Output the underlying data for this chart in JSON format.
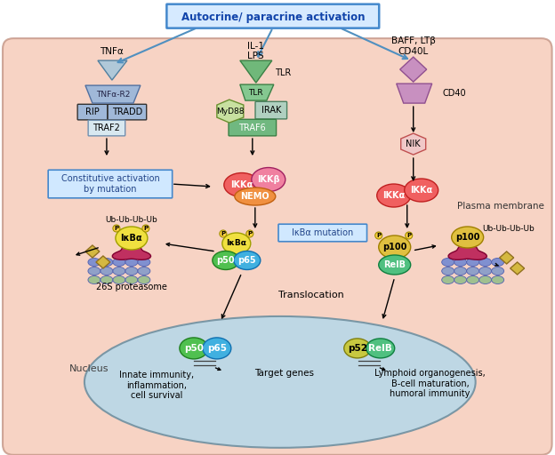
{
  "bg_color": "#FFFFFF",
  "cell_bg": "#F5C5B0",
  "nucleus_bg": "#B8D8E8",
  "cell_border": "#C09080",
  "nucleus_border": "#7090A0",
  "top_box_text": "Autocrine/ paracrine activation",
  "top_box_color": "#E8F4FF",
  "top_box_border": "#4080C0",
  "plasma_membrane_text": "Plasma membrane",
  "nucleus_text": "Nucleus",
  "labels": {
    "TNFa": "TNFα",
    "TNFa_R2": "TNFα-R2",
    "IL1": "IL-1",
    "LPS": "LPS",
    "TLR": "TLR",
    "BAFF_LTb": "BAFF, LTβ",
    "CD40L": "CD40L",
    "CD40": "CD40",
    "RIP": "RIP",
    "TRADD": "TRADD",
    "TRAF2": "TRAF2",
    "MyD88": "MyD88",
    "IRAK": "IRAK",
    "TRAF6": "TRAF6",
    "NIK": "NIK",
    "IKKa1": "IKKα",
    "IKKb": "IKKβ",
    "NEMO": "NEMO",
    "IKKa2": "IKKα",
    "IKKa3": "IKKα",
    "IkBa1": "IκBα",
    "IkBa2": "IκBα",
    "p50_1": "p50",
    "p65_1": "p65",
    "p100_1": "p100",
    "RelB_1": "RelB",
    "p100_2": "p100",
    "Ub_left": "Ub-Ub-Ub-Ub",
    "Ub_right": "Ub-Ub-Ub-Ub",
    "26S": "26S proteasome",
    "constitutive": "Constitutive activation\nby mutation",
    "IkBa_mutation": "IκBα mutation",
    "translocation": "Translocation",
    "p50_nuc": "p50",
    "p65_nuc": "p65",
    "p52_nuc": "p52",
    "RelB_nuc": "RelB",
    "innate": "Innate immunity,\ninflammation,\ncell survival",
    "target_genes": "Target genes",
    "lymphoid": "Lymphoid organogenesis,\nB-cell maturation,\nhumoral immunity",
    "P": "P"
  },
  "colors": {
    "top_box_bg": "#D6EAFF",
    "top_box_border": "#4488CC",
    "TNFa_receptor": "#A0B8D8",
    "RIP_box": "#A0B8D8",
    "TRADD_box": "#A0B8D8",
    "TRAF2_box": "#D8E8F0",
    "TLR_green": "#70B87A",
    "TLR_light": "#85C890",
    "MyD88_color": "#C8E0A0",
    "IRAK_color": "#B0D0C0",
    "TRAF6_color": "#70B880",
    "CD40_color": "#C890C0",
    "BAFF_color": "#C890C0",
    "NIK_color": "#F0C8C8",
    "IKKa_color": "#F06060",
    "IKKb_color": "#F080A0",
    "NEMO_color": "#F09040",
    "IkBa_color": "#F0E040",
    "p50_color": "#50C050",
    "p65_color": "#40B0E0",
    "p100_color": "#E0C040",
    "RelB_color": "#50C080",
    "p52_color": "#C8C840",
    "constitutive_box": "#D0E8FF",
    "proteasome_blue": "#8090D0",
    "proteasome_teal": "#90A0C8",
    "proteasome_green": "#A0C090",
    "blob_color": "#C03060",
    "diamond_color": "#D4B840",
    "P_circle": "#FFD040",
    "TNFa_tri": "#B0C8D8"
  }
}
